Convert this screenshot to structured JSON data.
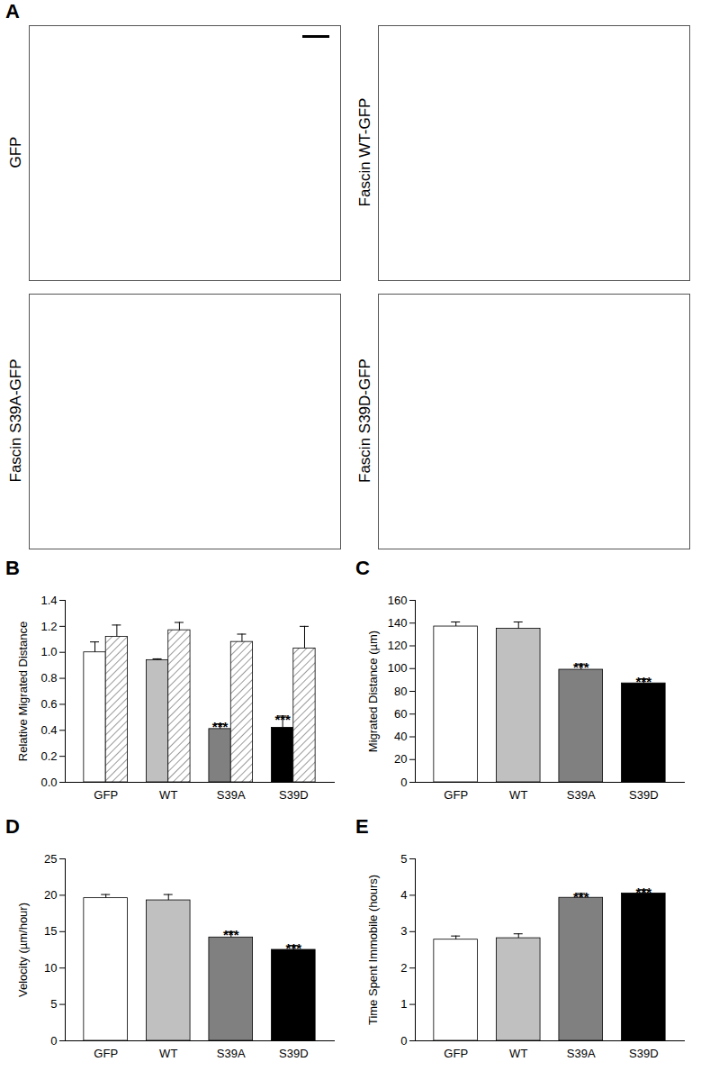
{
  "image_panels": {
    "title": "A",
    "panels": [
      "GFP",
      "Fascin WT-GFP",
      "Fascin S39A-GFP",
      "Fascin S39D-GFP"
    ]
  },
  "chart_data": [
    {
      "type": "bar",
      "title": "B",
      "y_label": "Relative Migrated Distance",
      "categories": [
        "GFP",
        "WT",
        "S39A",
        "S39D"
      ],
      "series": [
        {
          "values": [
            1.0,
            0.94,
            0.41,
            0.42
          ],
          "errors": [
            0.08,
            0.01,
            0.04,
            0.09
          ],
          "colors": [
            "#ffffff",
            "#c0c0c0",
            "#808080",
            "#000000"
          ]
        },
        {
          "values": [
            1.12,
            1.17,
            1.08,
            1.03
          ],
          "errors": [
            0.09,
            0.06,
            0.06,
            0.17
          ],
          "color": "#ffffff",
          "line_style": "hatched"
        }
      ],
      "annotations": [
        {
          "text": "***",
          "category": "S39A",
          "series": 0
        },
        {
          "text": "***",
          "category": "S39D",
          "series": 0
        }
      ],
      "ylim": [
        0,
        1.4
      ],
      "yticks": [
        {
          "value": 0,
          "label": "0.0"
        },
        {
          "value": 0.2,
          "label": "0.2"
        },
        {
          "value": 0.4,
          "label": "0.4"
        },
        {
          "value": 0.6,
          "label": "0.6"
        },
        {
          "value": 0.8,
          "label": "0.8"
        },
        {
          "value": 1,
          "label": "1.0"
        },
        {
          "value": 1.2,
          "label": "1.2"
        },
        {
          "value": 1.4,
          "label": "1.4"
        }
      ]
    },
    {
      "type": "bar",
      "title": "C",
      "y_label": "Migrated Distance (µm)",
      "categories": [
        "GFP",
        "WT",
        "S39A",
        "S39D"
      ],
      "values": [
        137,
        135,
        99,
        87
      ],
      "errors": [
        4,
        6,
        5,
        4
      ],
      "colors": [
        "#ffffff",
        "#c0c0c0",
        "#808080",
        "#000000"
      ],
      "annotations": [
        {
          "text": "***",
          "category": "S39A"
        },
        {
          "text": "***",
          "category": "S39D"
        }
      ],
      "ylim": [
        0,
        160
      ],
      "yticks": [
        0,
        20,
        40,
        60,
        80,
        100,
        120,
        140,
        160
      ]
    },
    {
      "type": "bar",
      "title": "D",
      "y_label": "Velocity (µm/hour)",
      "categories": [
        "GFP",
        "WT",
        "S39A",
        "S39D"
      ],
      "values": [
        19.6,
        19.3,
        14.2,
        12.5
      ],
      "errors": [
        0.5,
        0.8,
        0.8,
        0.6
      ],
      "colors": [
        "#ffffff",
        "#c0c0c0",
        "#808080",
        "#000000"
      ],
      "annotations": [
        {
          "text": "***",
          "category": "S39A"
        },
        {
          "text": "***",
          "category": "S39D"
        }
      ],
      "ylim": [
        0,
        25
      ],
      "yticks": [
        0,
        5,
        10,
        15,
        20,
        25
      ]
    },
    {
      "type": "bar",
      "title": "E",
      "y_label": "Time Spent Immobile (hours)",
      "categories": [
        "GFP",
        "WT",
        "S39A",
        "S39D"
      ],
      "values": [
        2.78,
        2.82,
        3.93,
        4.05
      ],
      "errors": [
        0.1,
        0.12,
        0.12,
        0.1
      ],
      "colors": [
        "#ffffff",
        "#c0c0c0",
        "#808080",
        "#000000"
      ],
      "annotations": [
        {
          "text": "***",
          "category": "S39A"
        },
        {
          "text": "***",
          "category": "S39D"
        }
      ],
      "ylim": [
        0,
        5
      ],
      "yticks": [
        0,
        1,
        2,
        3,
        4,
        5
      ]
    }
  ]
}
